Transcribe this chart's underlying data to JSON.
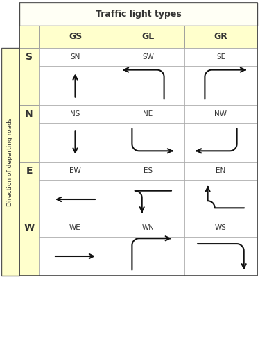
{
  "title": "Traffic light types",
  "col_headers": [
    "GS",
    "GL",
    "GR"
  ],
  "row_headers": [
    "S",
    "N",
    "E",
    "W"
  ],
  "flow_labels": [
    [
      "SN",
      "SW",
      "SE"
    ],
    [
      "NS",
      "NE",
      "NW"
    ],
    [
      "EW",
      "ES",
      "EN"
    ],
    [
      "WE",
      "WN",
      "WS"
    ]
  ],
  "bg_header": "#fffff5",
  "bg_colheader": "#ffffcc",
  "bg_cell": "#ffffff",
  "border_color": "#999999",
  "text_color": "#333333",
  "arrow_color": "#111111",
  "title_fontsize": 9,
  "header_fontsize": 9,
  "label_fontsize": 7.5,
  "row_label_fontsize": 10
}
